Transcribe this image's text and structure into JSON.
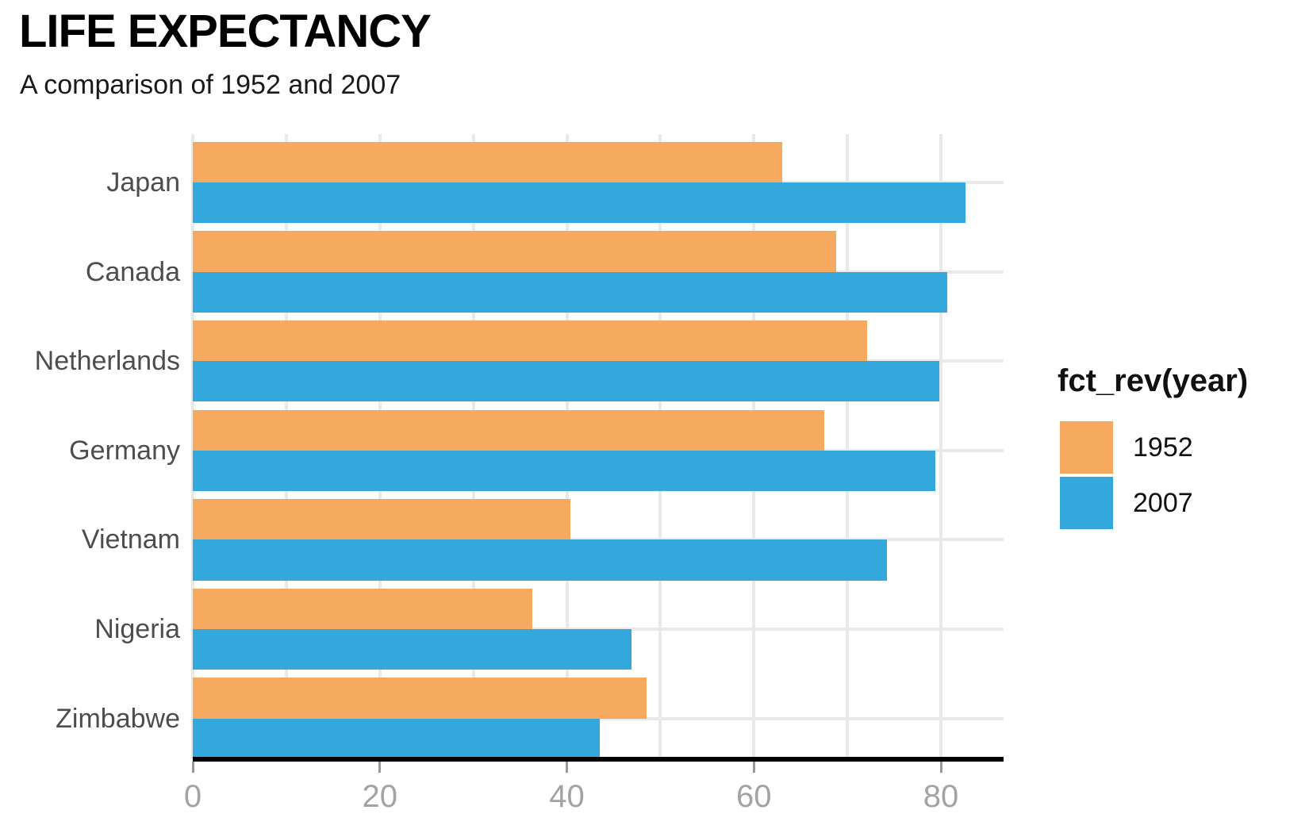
{
  "chart_data": {
    "type": "bar",
    "orientation": "horizontal",
    "title": "LIFE EXPECTANCY",
    "subtitle": "A comparison of 1952 and 2007",
    "categories": [
      "Japan",
      "Canada",
      "Netherlands",
      "Germany",
      "Vietnam",
      "Nigeria",
      "Zimbabwe"
    ],
    "series": [
      {
        "name": "1952",
        "color": "#F5AA5F",
        "values": [
          63.0,
          68.8,
          72.1,
          67.5,
          40.4,
          36.3,
          48.5
        ]
      },
      {
        "name": "2007",
        "color": "#34A8DC",
        "values": [
          82.6,
          80.7,
          79.8,
          79.4,
          74.2,
          46.9,
          43.5
        ]
      }
    ],
    "legend": {
      "title": "fct_rev(year)",
      "position": "center-right",
      "items": [
        {
          "label": "1952",
          "color": "#F5AA5F"
        },
        {
          "label": "2007",
          "color": "#34A8DC"
        }
      ]
    },
    "x_axis": {
      "ticks": [
        0,
        20,
        40,
        60,
        80
      ],
      "range": [
        0,
        86.7
      ],
      "grid_interval": 10
    },
    "y_axis": {
      "label_color": "#4D4D4D"
    },
    "style_colors": {
      "grid": "#E9E9E9",
      "axis_line": "#000000",
      "tick_mark": "#999999",
      "tick_label": "#A3A3A3"
    }
  }
}
